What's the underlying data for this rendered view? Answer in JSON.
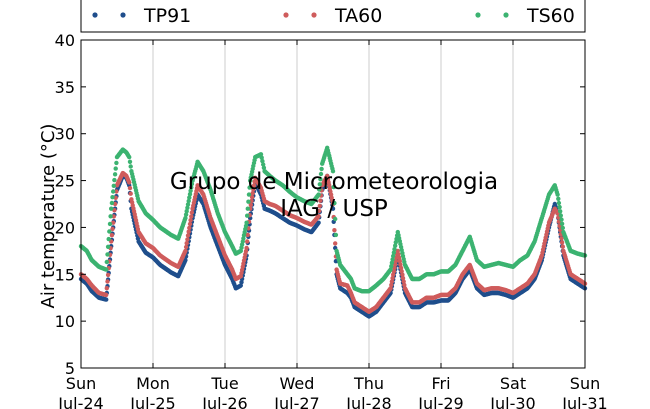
{
  "chart_data": {
    "type": "scatter",
    "ylabel": "Air temperature (°C)",
    "xlabel": "",
    "title": "",
    "ylim": [
      5,
      40
    ],
    "yticks": [
      "5",
      "10",
      "15",
      "20",
      "25",
      "30",
      "35",
      "40"
    ],
    "xlim_days": [
      0,
      7
    ],
    "xticks": [
      {
        "day": "Sun",
        "date": "Jul-24"
      },
      {
        "day": "Mon",
        "date": "Jul-25"
      },
      {
        "day": "Tue",
        "date": "Jul-26"
      },
      {
        "day": "Wed",
        "date": "Jul-27"
      },
      {
        "day": "Thu",
        "date": "Jul-28"
      },
      {
        "day": "Fri",
        "date": "Jul-29"
      },
      {
        "day": "Sat",
        "date": "Jul-30"
      },
      {
        "day": "Sun",
        "date": "Jul-31"
      }
    ],
    "grid": "vertical",
    "legend_position": "top",
    "watermark": [
      "Grupo de Micrometeorologia",
      "IAG / USP"
    ],
    "series": [
      {
        "name": "TP91",
        "color": "#1f4e8c",
        "x": [
          0,
          0.08,
          0.15,
          0.25,
          0.35,
          0.42,
          0.5,
          0.58,
          0.63,
          0.67,
          0.7,
          0.8,
          0.9,
          1.0,
          1.1,
          1.25,
          1.35,
          1.45,
          1.55,
          1.62,
          1.7,
          1.8,
          1.9,
          2.0,
          2.1,
          2.15,
          2.22,
          2.3,
          2.35,
          2.42,
          2.5,
          2.55,
          2.62,
          2.7,
          2.8,
          2.9,
          3.0,
          3.1,
          3.2,
          3.3,
          3.35,
          3.42,
          3.5,
          3.55,
          3.6,
          3.7,
          3.75,
          3.8,
          3.9,
          4.0,
          4.1,
          4.2,
          4.3,
          4.4,
          4.5,
          4.6,
          4.7,
          4.8,
          4.9,
          5.0,
          5.1,
          5.2,
          5.3,
          5.4,
          5.5,
          5.6,
          5.7,
          5.8,
          5.9,
          6.0,
          6.1,
          6.2,
          6.3,
          6.4,
          6.5,
          6.58,
          6.62,
          6.7,
          6.8,
          6.9,
          7.0
        ],
        "values": [
          14.5,
          14,
          13.2,
          12.5,
          12.3,
          18,
          24,
          25.5,
          25.3,
          24.5,
          22,
          18.5,
          17.3,
          16.8,
          16,
          15.2,
          14.8,
          16.5,
          21,
          23.5,
          22.5,
          20,
          18,
          16,
          14.5,
          13.5,
          13.8,
          17,
          21,
          24.8,
          23.5,
          22,
          21.8,
          21.5,
          21,
          20.5,
          20.2,
          19.8,
          19.5,
          20.5,
          24,
          25.5,
          22,
          15,
          13.5,
          13,
          12.5,
          11.5,
          11,
          10.5,
          11,
          12,
          13,
          17,
          13,
          11.5,
          11.5,
          12,
          12,
          12.2,
          12.2,
          13,
          14.5,
          15.5,
          13.5,
          12.8,
          13,
          13,
          12.8,
          12.5,
          13,
          13.5,
          14.5,
          16.5,
          20,
          22.5,
          21.5,
          17,
          14.5,
          14,
          13.5
        ]
      },
      {
        "name": "TA60",
        "color": "#cf5c5c",
        "x": [
          0,
          0.08,
          0.15,
          0.25,
          0.35,
          0.42,
          0.5,
          0.58,
          0.63,
          0.67,
          0.7,
          0.8,
          0.9,
          1.0,
          1.1,
          1.25,
          1.35,
          1.45,
          1.55,
          1.62,
          1.7,
          1.8,
          1.9,
          2.0,
          2.1,
          2.15,
          2.22,
          2.3,
          2.35,
          2.42,
          2.5,
          2.55,
          2.62,
          2.7,
          2.8,
          2.9,
          3.0,
          3.1,
          3.2,
          3.3,
          3.35,
          3.42,
          3.5,
          3.55,
          3.6,
          3.7,
          3.75,
          3.8,
          3.9,
          4.0,
          4.1,
          4.2,
          4.3,
          4.4,
          4.5,
          4.6,
          4.7,
          4.8,
          4.9,
          5.0,
          5.1,
          5.2,
          5.3,
          5.4,
          5.5,
          5.6,
          5.7,
          5.8,
          5.9,
          6.0,
          6.1,
          6.2,
          6.3,
          6.4,
          6.5,
          6.58,
          6.62,
          6.7,
          6.8,
          6.9,
          7.0
        ],
        "values": [
          15,
          14.5,
          13.8,
          13,
          12.8,
          18.5,
          24.5,
          25.8,
          25.5,
          24.8,
          23,
          19.5,
          18.3,
          17.8,
          17,
          16.2,
          15.8,
          17.5,
          22,
          24.5,
          23.5,
          21,
          19,
          17,
          15.5,
          14.5,
          14.8,
          17.8,
          22,
          25.3,
          24.2,
          22.8,
          22.5,
          22.3,
          21.8,
          21.3,
          21,
          20.6,
          20.3,
          21.2,
          24.5,
          25.5,
          22.5,
          15.5,
          14,
          13.8,
          13,
          12,
          11.5,
          11,
          11.5,
          12.5,
          13.5,
          17.5,
          13.5,
          12,
          12,
          12.5,
          12.5,
          12.8,
          12.8,
          13.5,
          15,
          16,
          14,
          13.3,
          13.5,
          13.5,
          13.3,
          13,
          13.5,
          14,
          15,
          17,
          20.5,
          22,
          21.5,
          17.5,
          15,
          14.5,
          14
        ]
      },
      {
        "name": "TS60",
        "color": "#3cb371",
        "x": [
          0,
          0.08,
          0.15,
          0.25,
          0.35,
          0.42,
          0.5,
          0.58,
          0.63,
          0.67,
          0.7,
          0.8,
          0.9,
          1.0,
          1.1,
          1.25,
          1.35,
          1.45,
          1.55,
          1.62,
          1.7,
          1.8,
          1.9,
          2.0,
          2.1,
          2.15,
          2.22,
          2.3,
          2.35,
          2.42,
          2.5,
          2.55,
          2.62,
          2.7,
          2.8,
          2.9,
          3.0,
          3.1,
          3.2,
          3.3,
          3.35,
          3.42,
          3.5,
          3.55,
          3.6,
          3.7,
          3.75,
          3.8,
          3.9,
          4.0,
          4.1,
          4.2,
          4.3,
          4.4,
          4.5,
          4.6,
          4.7,
          4.8,
          4.9,
          5.0,
          5.1,
          5.2,
          5.3,
          5.4,
          5.5,
          5.6,
          5.7,
          5.8,
          5.9,
          6.0,
          6.1,
          6.2,
          6.3,
          6.4,
          6.5,
          6.58,
          6.62,
          6.7,
          6.8,
          6.9,
          7.0
        ],
        "values": [
          18,
          17.5,
          16.5,
          15.8,
          15.5,
          22,
          27.5,
          28.3,
          28,
          27.5,
          26,
          22.8,
          21.5,
          20.8,
          20,
          19.2,
          18.8,
          21,
          25,
          27,
          26,
          24,
          21.5,
          19.5,
          18,
          17.2,
          17.5,
          20.5,
          25,
          27.5,
          27.8,
          26,
          25.5,
          25,
          24.5,
          23.8,
          23.2,
          22.8,
          22.5,
          23.5,
          26.8,
          28.5,
          26,
          17.5,
          16,
          15,
          14.5,
          13.5,
          13.2,
          13.2,
          13.8,
          14.5,
          15.5,
          19.5,
          16,
          14.5,
          14.5,
          15,
          15,
          15.3,
          15.3,
          16,
          17.5,
          19,
          16.5,
          15.8,
          16,
          16.2,
          16,
          15.8,
          16.5,
          17,
          18.5,
          21,
          23.5,
          24.5,
          23.5,
          19.5,
          17.5,
          17.2,
          17
        ]
      }
    ]
  }
}
